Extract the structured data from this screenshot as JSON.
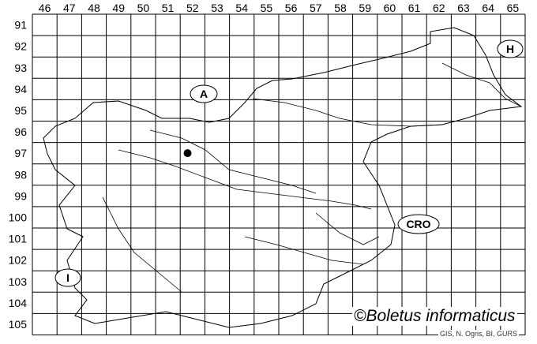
{
  "map": {
    "columns": [
      "46",
      "47",
      "48",
      "49",
      "50",
      "51",
      "52",
      "53",
      "54",
      "55",
      "56",
      "57",
      "58",
      "59",
      "60",
      "61",
      "62",
      "63",
      "64",
      "65"
    ],
    "rows": [
      "91",
      "92",
      "93",
      "94",
      "95",
      "96",
      "97",
      "98",
      "99",
      "100",
      "101",
      "102",
      "103",
      "104",
      "105"
    ],
    "country_labels": [
      {
        "id": "austria",
        "text": "A"
      },
      {
        "id": "hungary",
        "text": "H"
      },
      {
        "id": "croatia",
        "text": "CRO"
      },
      {
        "id": "italy",
        "text": "I"
      }
    ],
    "occurrence_marker": {
      "column": "52",
      "row": "97"
    },
    "watermark": "©Boletus informaticus",
    "credit": "GIS, N. Ogris, BI, GURS"
  }
}
